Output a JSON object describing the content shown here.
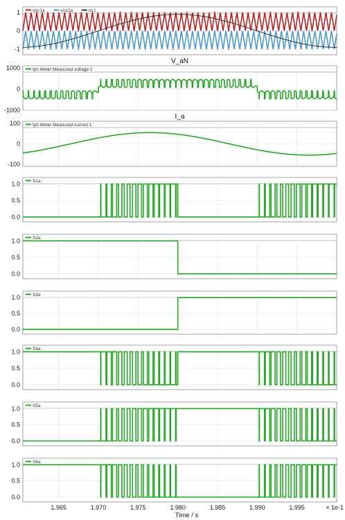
{
  "chart_data": {
    "type": "line",
    "x_unit_label": "Time / s",
    "x_multiplier": "× 1e-1",
    "x_range": [
      1.9605,
      2.0
    ],
    "x_ticks": [
      "1.965",
      "1.970",
      "1.975",
      "1.980",
      "1.985",
      "1.990",
      "1.995"
    ],
    "x_tick_values": [
      1.965,
      1.97,
      1.975,
      1.98,
      1.985,
      1.99,
      1.995
    ],
    "panels": [
      {
        "title": "",
        "ylim": [
          -1.3,
          1.3
        ],
        "yticks": [
          "1",
          "0",
          "-1"
        ],
        "ytick_values": [
          1,
          0,
          -1
        ],
        "series": [
          {
            "name": "v/cr1a",
            "color": "#c0201f",
            "kind": "triangle",
            "min": 0,
            "max": 1,
            "period": 0.0007,
            "phase": 0.0
          },
          {
            "name": "v/cr2a",
            "color": "#4a9ad4",
            "kind": "triangle",
            "min": -1,
            "max": 0,
            "period": 0.0007,
            "phase": 0.0
          },
          {
            "name": "m:1",
            "color": "#333333",
            "kind": "sine",
            "amplitude": 0.9,
            "center": 1.98,
            "period": 0.04
          }
        ]
      },
      {
        "title": "V_aN",
        "ylim": [
          -1000,
          1100
        ],
        "yticks": [
          "1000",
          "0",
          "-1000"
        ],
        "ytick_values": [
          1000,
          0,
          -1000
        ],
        "series": [
          {
            "name": "Iph Meter:Measured voltage:1",
            "color": "#22aa22",
            "kind": "multilevel",
            "level": 600,
            "center": 1.98,
            "period": 0.04,
            "offset": 200
          }
        ]
      },
      {
        "title": "I_a",
        "ylim": [
          -110,
          110
        ],
        "yticks": [
          "100",
          "0",
          "-100"
        ],
        "ytick_values": [
          100,
          0,
          -100
        ],
        "series": [
          {
            "name": "Iph Meter:Measured current:1",
            "color": "#22aa22",
            "kind": "sine",
            "amplitude": 55,
            "center": 1.9765,
            "period": 0.04
          }
        ]
      },
      {
        "title": "",
        "ylim": [
          -0.15,
          1.2
        ],
        "yticks": [
          "1.0",
          "0.5",
          "0.0"
        ],
        "ytick_values": [
          1.0,
          0.5,
          0.0
        ],
        "series": [
          {
            "name": "S1a",
            "color": "#22aa22",
            "kind": "pwm_upper"
          }
        ]
      },
      {
        "title": "",
        "ylim": [
          -0.15,
          1.2
        ],
        "yticks": [
          "1.0",
          "0.5",
          "0.0"
        ],
        "ytick_values": [
          1.0,
          0.5,
          0.0
        ],
        "series": [
          {
            "name": "S2a",
            "color": "#22aa22",
            "kind": "step",
            "before": 1,
            "after": 0,
            "switch_at": 1.98
          }
        ]
      },
      {
        "title": "",
        "ylim": [
          -0.15,
          1.2
        ],
        "yticks": [
          "1.0",
          "0.5",
          "0.0"
        ],
        "ytick_values": [
          1.0,
          0.5,
          0.0
        ],
        "series": [
          {
            "name": "S3a",
            "color": "#22aa22",
            "kind": "step",
            "before": 0,
            "after": 1,
            "switch_at": 1.98
          }
        ]
      },
      {
        "title": "",
        "ylim": [
          -0.15,
          1.2
        ],
        "yticks": [
          "1.0",
          "0.5",
          "0.0"
        ],
        "ytick_values": [
          1.0,
          0.5,
          0.0
        ],
        "series": [
          {
            "name": "S4a",
            "color": "#22aa22",
            "kind": "pwm_lower"
          }
        ]
      },
      {
        "title": "",
        "ylim": [
          -0.15,
          1.2
        ],
        "yticks": [
          "1.0",
          "0.5",
          "0.0"
        ],
        "ytick_values": [
          1.0,
          0.5,
          0.0
        ],
        "series": [
          {
            "name": "S5a",
            "color": "#22aa22",
            "kind": "pwm_upper_inv"
          }
        ]
      },
      {
        "title": "",
        "ylim": [
          -0.15,
          1.2
        ],
        "yticks": [
          "1.0",
          "0.5",
          "0.0"
        ],
        "ytick_values": [
          1.0,
          0.5,
          0.0
        ],
        "series": [
          {
            "name": "S6a",
            "color": "#22aa22",
            "kind": "pwm_lower_inv"
          }
        ]
      }
    ],
    "grid": true,
    "legend_placement": "top-left"
  }
}
